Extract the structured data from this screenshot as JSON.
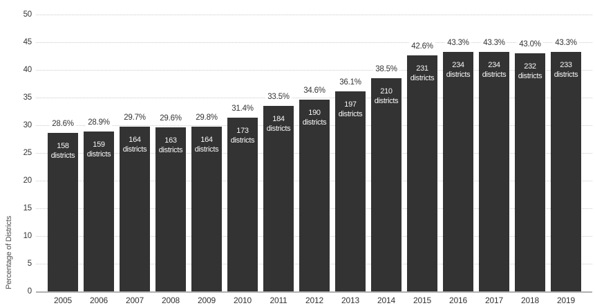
{
  "colors": {
    "bar": "#333333",
    "gridline": "#c9c9c9",
    "axis_line": "#b0b0b0",
    "tick_text": "#333333",
    "bar_inner_text": "#f7f7f7"
  },
  "chart_data": {
    "type": "bar",
    "title": "",
    "xlabel": "",
    "ylabel": "Percentage of Districts",
    "ylim": [
      0,
      50
    ],
    "yticks": [
      0,
      5,
      10,
      15,
      20,
      25,
      30,
      35,
      40,
      45,
      50
    ],
    "grid": true,
    "legend": "none",
    "categories": [
      "2005",
      "2006",
      "2007",
      "2008",
      "2009",
      "2010",
      "2011",
      "2012",
      "2013",
      "2014",
      "2015",
      "2016",
      "2017",
      "2018",
      "2019"
    ],
    "series": [
      {
        "name": "Percentage of Districts",
        "values": [
          28.6,
          28.9,
          29.7,
          29.6,
          29.8,
          31.4,
          33.5,
          34.6,
          36.1,
          38.5,
          42.6,
          43.3,
          43.3,
          43.0,
          43.3
        ]
      }
    ],
    "bar_top_labels": [
      "28.6%",
      "28.9%",
      "29.7%",
      "29.6%",
      "29.8%",
      "31.4%",
      "33.5%",
      "34.6%",
      "36.1%",
      "38.5%",
      "42.6%",
      "43.3%",
      "43.3%",
      "43.0%",
      "43.3%"
    ],
    "district_counts": [
      158,
      159,
      164,
      163,
      164,
      173,
      184,
      190,
      197,
      210,
      231,
      234,
      234,
      232,
      233
    ],
    "district_label_suffix": "districts"
  }
}
